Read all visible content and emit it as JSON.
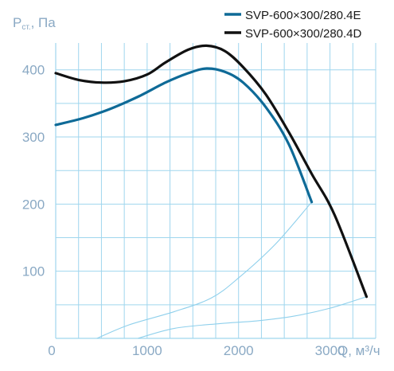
{
  "chart_data": {
    "type": "line",
    "ylabel_main": "P",
    "ylabel_sub": "ст.",
    "ylabel_unit": ", Па",
    "xlabel": "Q, м³/ч",
    "x_ticks": [
      "0",
      "1000",
      "2000",
      "3000"
    ],
    "y_ticks": [
      "100",
      "200",
      "300",
      "400"
    ],
    "xlim": [
      0,
      3500
    ],
    "ylim": [
      0,
      440
    ],
    "grid": true,
    "legend_position": "top-right",
    "series": [
      {
        "name": "SVP-600×300/280.4E",
        "color": "#0e6a97",
        "points": [
          [
            0,
            318
          ],
          [
            300,
            328
          ],
          [
            600,
            342
          ],
          [
            900,
            360
          ],
          [
            1200,
            381
          ],
          [
            1450,
            395
          ],
          [
            1650,
            402
          ],
          [
            1850,
            397
          ],
          [
            2050,
            381
          ],
          [
            2300,
            344
          ],
          [
            2550,
            289
          ],
          [
            2800,
            203
          ]
        ]
      },
      {
        "name": "SVP-600×300/280.4D",
        "color": "#111111",
        "points": [
          [
            0,
            395
          ],
          [
            250,
            385
          ],
          [
            500,
            381
          ],
          [
            750,
            383
          ],
          [
            1000,
            393
          ],
          [
            1200,
            411
          ],
          [
            1450,
            430
          ],
          [
            1650,
            436
          ],
          [
            1850,
            428
          ],
          [
            2050,
            404
          ],
          [
            2300,
            363
          ],
          [
            2550,
            307
          ],
          [
            2800,
            245
          ],
          [
            3050,
            184
          ],
          [
            3400,
            62
          ]
        ]
      }
    ],
    "system_curves": [
      {
        "color": "#8fd0ec",
        "points": [
          [
            450,
            0
          ],
          [
            800,
            20
          ],
          [
            1300,
            40
          ],
          [
            1700,
            60
          ],
          [
            2000,
            90
          ],
          [
            2400,
            140
          ],
          [
            2800,
            203
          ]
        ]
      },
      {
        "color": "#8fd0ec",
        "points": [
          [
            900,
            0
          ],
          [
            1300,
            15
          ],
          [
            1800,
            22
          ],
          [
            2200,
            26
          ],
          [
            2600,
            33
          ],
          [
            3000,
            45
          ],
          [
            3400,
            62
          ]
        ]
      }
    ]
  }
}
